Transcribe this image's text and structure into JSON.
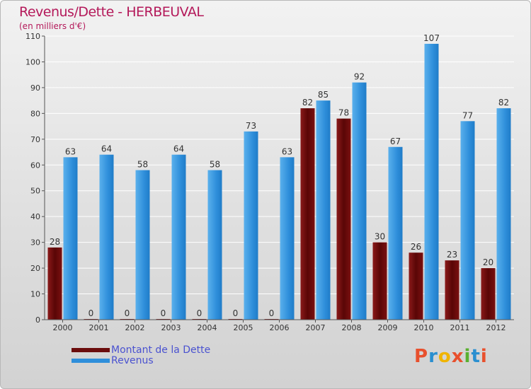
{
  "title": "Revenus/Dette - HERBEUVAL",
  "subtitle": "(en milliers d'€)",
  "logo_text": "Proxiti",
  "logo_letters": [
    {
      "ch": "P",
      "color": "#e8502d"
    },
    {
      "ch": "r",
      "color": "#2a8fd0"
    },
    {
      "ch": "o",
      "color": "#f0b400"
    },
    {
      "ch": "x",
      "color": "#e8502d"
    },
    {
      "ch": "i",
      "color": "#5ab030"
    },
    {
      "ch": "t",
      "color": "#2a8fd0"
    },
    {
      "ch": "i",
      "color": "#e8502d"
    }
  ],
  "colors": {
    "dette": "#6b0c0c",
    "revenus": "#2f8fdb",
    "title": "#b4195a",
    "legend_text": "#4a52d0"
  },
  "chart_data": {
    "type": "bar",
    "title": "Revenus/Dette - HERBEUVAL",
    "subtitle": "(en milliers d'€)",
    "categories": [
      "2000",
      "2001",
      "2002",
      "2003",
      "2004",
      "2005",
      "2006",
      "2007",
      "2008",
      "2009",
      "2010",
      "2011",
      "2012"
    ],
    "series": [
      {
        "name": "Montant de la Dette",
        "values": [
          28,
          0,
          0,
          0,
          0,
          0,
          0,
          82,
          78,
          30,
          26,
          23,
          20
        ]
      },
      {
        "name": "Revenus",
        "values": [
          63,
          64,
          58,
          64,
          58,
          73,
          63,
          85,
          92,
          67,
          107,
          77,
          82
        ]
      }
    ],
    "ylim": [
      0,
      110
    ],
    "yticks": [
      0,
      10,
      20,
      30,
      40,
      50,
      60,
      70,
      80,
      90,
      100,
      110
    ],
    "grid": true,
    "legend": "bottom-left"
  }
}
